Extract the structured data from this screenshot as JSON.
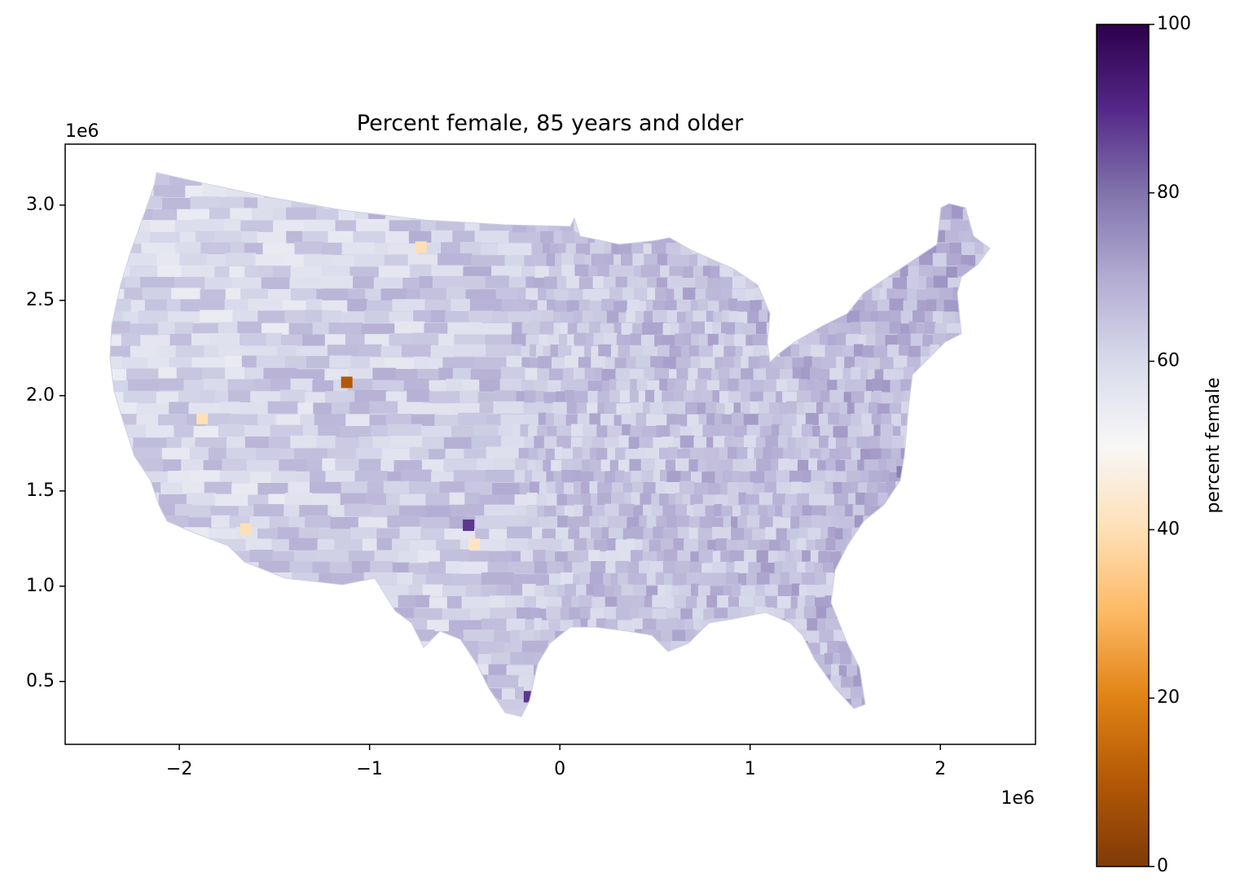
{
  "chart_data": {
    "type": "choropleth",
    "title": "Percent female, 85 years and older",
    "x_axis": {
      "ticks": [
        -2,
        -1,
        0,
        1,
        2
      ],
      "tick_labels": [
        "−2",
        "−1",
        "0",
        "1",
        "2"
      ],
      "offset_text": "1e6",
      "range": [
        -2.6,
        2.5
      ]
    },
    "y_axis": {
      "ticks": [
        0.5,
        1.0,
        1.5,
        2.0,
        2.5,
        3.0
      ],
      "tick_labels": [
        "0.5",
        "1.0",
        "1.5",
        "2.0",
        "2.5",
        "3.0"
      ],
      "offset_text": "1e6",
      "range": [
        0.17,
        3.32
      ]
    },
    "colorbar": {
      "label": "percent female",
      "ticks": [
        0,
        20,
        40,
        60,
        80,
        100
      ],
      "tick_labels": [
        "0",
        "20",
        "40",
        "60",
        "80",
        "100"
      ],
      "range": [
        0,
        100
      ],
      "colormap": "PuOr",
      "colors": [
        "#7f3b08",
        "#b35806",
        "#e08214",
        "#fdb863",
        "#fee0b6",
        "#f7f7f7",
        "#d8daeb",
        "#b2abd2",
        "#8073ac",
        "#542788",
        "#2d004b"
      ]
    },
    "map_region": "contiguous United States counties",
    "outlier_regions": [
      {
        "x": -1.12,
        "y": 2.07,
        "value": 10
      },
      {
        "x": -0.16,
        "y": 0.42,
        "value": 88
      },
      {
        "x": -0.48,
        "y": 1.32,
        "value": 88
      },
      {
        "x": 1.8,
        "y": 1.6,
        "value": 78
      },
      {
        "x": -1.88,
        "y": 1.88,
        "value": 40
      },
      {
        "x": -1.65,
        "y": 1.3,
        "value": 40
      },
      {
        "x": -0.73,
        "y": 2.78,
        "value": 40
      },
      {
        "x": -0.45,
        "y": 1.22,
        "value": 42
      }
    ]
  }
}
